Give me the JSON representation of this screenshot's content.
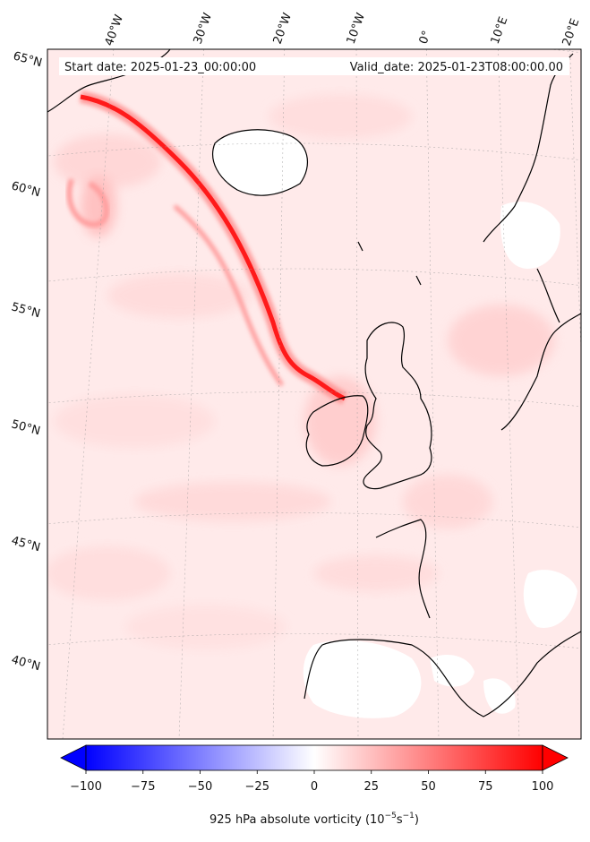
{
  "header": {
    "start_date": "Start date: 2025-01-23_00:00:00",
    "valid_date": "Valid_date: 2025-01-23T08:00:00.00"
  },
  "map": {
    "projection": "conic (North Atlantic / Europe)",
    "field": "925 hPa absolute vorticity",
    "lon_labels": [
      "40°W",
      "30°W",
      "20°W",
      "10°W",
      "0°",
      "10°E",
      "20°E"
    ],
    "lat_labels": [
      "65°N",
      "60°N",
      "55°N",
      "50°N",
      "45°N",
      "40°N"
    ],
    "gridlines": true,
    "coastlines": true
  },
  "colorbar": {
    "min": -100,
    "max": 100,
    "ticks": [
      "−100",
      "−75",
      "−50",
      "−25",
      "0",
      "25",
      "50",
      "75",
      "100"
    ],
    "colormap": "bwr",
    "extend": "both",
    "label_main": "925 hPa absolute vorticity (10",
    "label_sup1": "−5",
    "label_mid": "s",
    "label_sup2": "−1",
    "label_end": ")",
    "colors": {
      "negative": "#0000ff",
      "zero": "#ffffff",
      "positive": "#ff0000"
    }
  }
}
